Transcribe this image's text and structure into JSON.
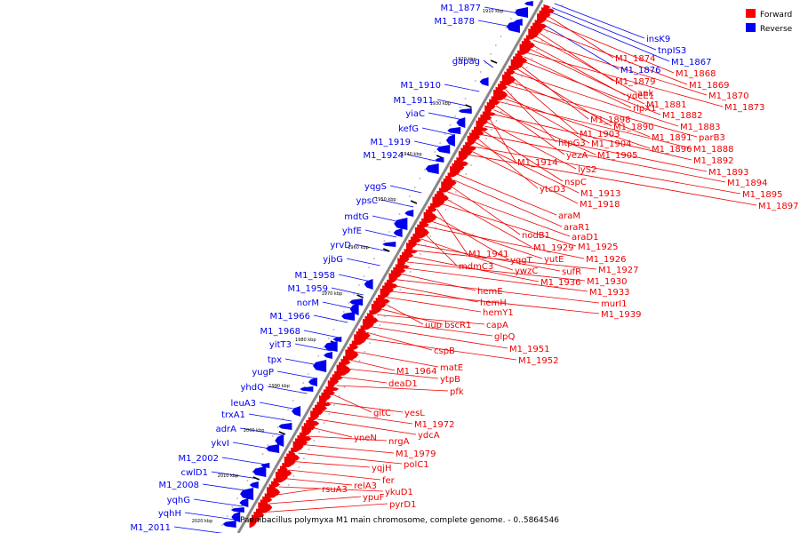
{
  "caption": "Paenibacillus polymyxa M1 main chromosome, complete genome. - 0..5864546",
  "legend": [
    {
      "label": "Forward",
      "color": "#ff0000"
    },
    {
      "label": "Reverse",
      "color": "#0000ff"
    }
  ],
  "colors": {
    "forward": "#ee0000",
    "reverse": "#0000ee",
    "backbone": "#888888",
    "tick": "#000000"
  },
  "ticks": [
    "1910 kbp",
    "1920 kbp",
    "1930 kbp",
    "1940 kbp",
    "1950 kbp",
    "1960 kbp",
    "1970 kbp",
    "1980 kbp",
    "1990 kbp",
    "2000 kbp",
    "2010 kbp",
    "2020 kbp"
  ],
  "reverse_genes": [
    "M1_1877",
    "M1_1878",
    "gapag",
    "M1_1910",
    "M1_1911",
    "yiaC",
    "kefG",
    "M1_1919",
    "M1_1924",
    "yqgS",
    "ypsC",
    "mdtG",
    "yhfE",
    "yrvD",
    "yjbG",
    "M1_1958",
    "M1_1959",
    "norM",
    "M1_1966",
    "M1_1968",
    "yitT3",
    "tpx",
    "yugP",
    "yhdQ",
    "leuA3",
    "trxA1",
    "adrA",
    "ykvI",
    "M1_2002",
    "cwlD1",
    "M1_2008",
    "yqhG",
    "yqhH",
    "M1_2011"
  ],
  "upper_labels": [
    {
      "text": "insK9",
      "strand": "reverse"
    },
    {
      "text": "tnpIS3",
      "strand": "reverse"
    },
    {
      "text": "M1_1867",
      "strand": "reverse"
    },
    {
      "text": "M1_1874",
      "strand": "forward"
    },
    {
      "text": "M1_1868",
      "strand": "forward"
    },
    {
      "text": "M1_1876",
      "strand": "reverse"
    },
    {
      "text": "M1_1869",
      "strand": "forward"
    },
    {
      "text": "M1_1879",
      "strand": "forward"
    },
    {
      "text": "ank",
      "strand": "forward"
    },
    {
      "text": "M1_1870",
      "strand": "forward"
    },
    {
      "text": "ydeE1",
      "strand": "forward"
    },
    {
      "text": "M1_1881",
      "strand": "forward"
    },
    {
      "text": "M1_1873",
      "strand": "forward"
    },
    {
      "text": "ripX1",
      "strand": "forward"
    },
    {
      "text": "M1_1882",
      "strand": "forward"
    },
    {
      "text": "M1_1898",
      "strand": "forward"
    },
    {
      "text": "M1_1890",
      "strand": "forward"
    },
    {
      "text": "M1_1883",
      "strand": "forward"
    },
    {
      "text": "M1_1903",
      "strand": "forward"
    },
    {
      "text": "M1_1891",
      "strand": "forward"
    },
    {
      "text": "parB3",
      "strand": "forward"
    },
    {
      "text": "htpG3",
      "strand": "forward"
    },
    {
      "text": "M1_1904",
      "strand": "forward"
    },
    {
      "text": "M1_1896",
      "strand": "forward"
    },
    {
      "text": "M1_1888",
      "strand": "forward"
    },
    {
      "text": "yezA",
      "strand": "forward"
    },
    {
      "text": "M1_1905",
      "strand": "forward"
    },
    {
      "text": "M1_1892",
      "strand": "forward"
    },
    {
      "text": "M1_1914",
      "strand": "forward"
    },
    {
      "text": "lyS2",
      "strand": "forward"
    },
    {
      "text": "M1_1893",
      "strand": "forward"
    },
    {
      "text": "nspC",
      "strand": "forward"
    },
    {
      "text": "M1_1894",
      "strand": "forward"
    },
    {
      "text": "ytcD3",
      "strand": "forward"
    },
    {
      "text": "M1_1913",
      "strand": "forward"
    },
    {
      "text": "M1_1895",
      "strand": "forward"
    },
    {
      "text": "M1_1918",
      "strand": "forward"
    },
    {
      "text": "M1_1897",
      "strand": "forward"
    }
  ],
  "middle_labels": [
    {
      "text": "araM"
    },
    {
      "text": "araR1"
    },
    {
      "text": "nodB1"
    },
    {
      "text": "araD1"
    },
    {
      "text": "M1_1929"
    },
    {
      "text": "M1_1925"
    },
    {
      "text": "M1_1941"
    },
    {
      "text": "yqgT"
    },
    {
      "text": "yutE"
    },
    {
      "text": "M1_1926"
    },
    {
      "text": "mdmC3"
    },
    {
      "text": "ywzC"
    },
    {
      "text": "sufR"
    },
    {
      "text": "M1_1927"
    },
    {
      "text": "M1_1936"
    },
    {
      "text": "M1_1930"
    },
    {
      "text": "M1_1933"
    },
    {
      "text": "hemE"
    },
    {
      "text": "murI1"
    },
    {
      "text": "hemH"
    },
    {
      "text": "M1_1939"
    },
    {
      "text": "hemY1"
    },
    {
      "text": "uup"
    },
    {
      "text": "bscR1"
    },
    {
      "text": "capA"
    },
    {
      "text": "glpQ"
    },
    {
      "text": "M1_1951"
    },
    {
      "text": "cspB"
    },
    {
      "text": "M1_1952"
    }
  ],
  "lower_labels": [
    {
      "text": "matE"
    },
    {
      "text": "M1_1964"
    },
    {
      "text": "ytpB"
    },
    {
      "text": "deaD1"
    },
    {
      "text": "pfk"
    },
    {
      "text": "gltC"
    },
    {
      "text": "yesL"
    },
    {
      "text": "M1_1972"
    },
    {
      "text": "ydcA"
    },
    {
      "text": "yneN"
    },
    {
      "text": "nrgA"
    },
    {
      "text": "M1_1979"
    },
    {
      "text": "polC1"
    },
    {
      "text": "yqjH"
    },
    {
      "text": "fer"
    },
    {
      "text": "relA3"
    },
    {
      "text": "ykuD1"
    },
    {
      "text": "rsuA3"
    },
    {
      "text": "ypuF"
    },
    {
      "text": "pyrD1"
    }
  ]
}
